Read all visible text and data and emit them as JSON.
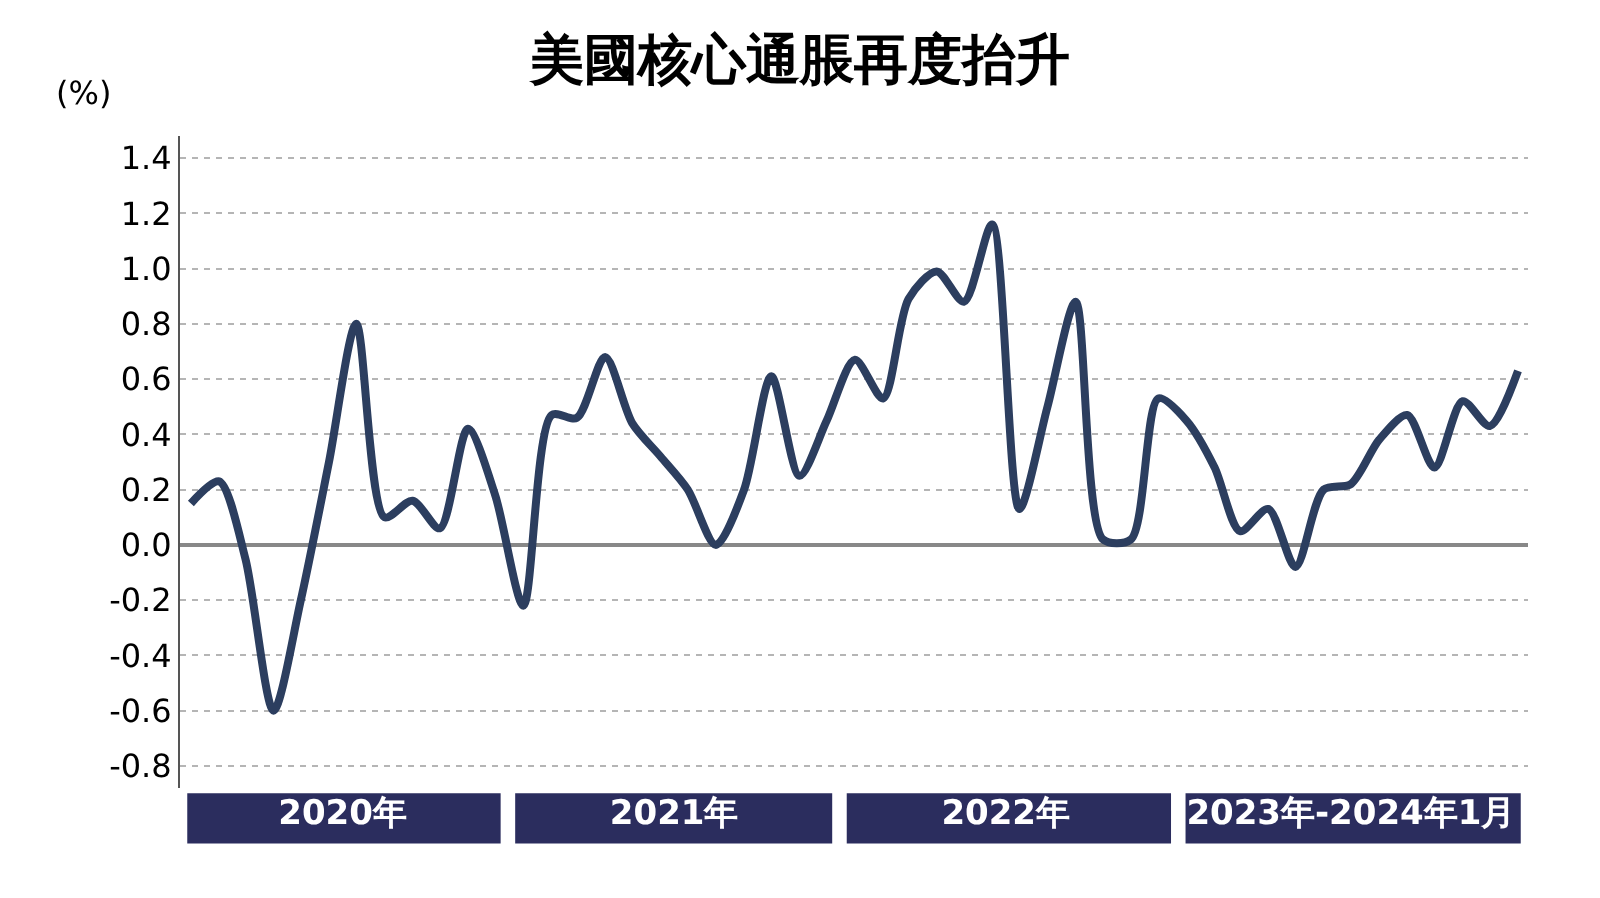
{
  "chart_data": {
    "type": "line",
    "title": "美國核心通脹再度抬升",
    "ylabel": "(%)",
    "x": [
      "2020-01",
      "2020-02",
      "2020-03",
      "2020-04",
      "2020-05",
      "2020-06",
      "2020-07",
      "2020-08",
      "2020-09",
      "2020-10",
      "2020-11",
      "2020-12",
      "2021-01",
      "2021-02",
      "2021-03",
      "2021-04",
      "2021-05",
      "2021-06",
      "2021-07",
      "2021-08",
      "2021-09",
      "2021-10",
      "2021-11",
      "2021-12",
      "2022-01",
      "2022-02",
      "2022-03",
      "2022-04",
      "2022-05",
      "2022-06",
      "2022-07",
      "2022-08",
      "2022-09",
      "2022-10",
      "2022-11",
      "2022-12",
      "2023-01",
      "2023-02",
      "2023-03",
      "2023-04",
      "2023-05",
      "2023-06",
      "2023-07",
      "2023-08",
      "2023-09",
      "2023-10",
      "2023-11",
      "2023-12",
      "2024-01"
    ],
    "series": [
      {
        "color": "#2c3e5f",
        "values": [
          0.15,
          0.23,
          -0.05,
          -0.6,
          -0.2,
          0.3,
          0.8,
          0.1,
          0.16,
          0.06,
          0.42,
          0.18,
          -0.22,
          0.47,
          0.46,
          0.68,
          0.44,
          0.32,
          0.2,
          0.0,
          0.2,
          0.61,
          0.25,
          0.45,
          0.67,
          0.53,
          0.89,
          0.99,
          0.88,
          1.16,
          0.13,
          0.5,
          0.88,
          0.02,
          0.02,
          0.53,
          0.45,
          0.28,
          0.05,
          0.13,
          -0.08,
          0.2,
          0.22,
          0.38,
          0.47,
          0.28,
          0.52,
          0.43,
          0.63
        ]
      }
    ],
    "xlim": [
      "2019-12-20",
      "2024-01-12"
    ],
    "xticks": [
      {
        "value": "2020-06-16",
        "label": "2020年"
      },
      {
        "value": "2021-06-16",
        "label": "2021年"
      },
      {
        "value": "2022-06-16",
        "label": "2022年"
      },
      {
        "value": "2023-07-01",
        "label": "2023年-2024年1月"
      }
    ],
    "ylim": [
      -0.88,
      1.48
    ],
    "yticks": [
      -0.8,
      -0.6,
      -0.4,
      -0.2,
      {
        "value": 0,
        "label": "0.0"
      },
      0.2,
      0.4,
      0.6,
      0.8,
      {
        "value": 1,
        "label": "1.0"
      },
      1.2,
      1.4
    ],
    "grid": "y",
    "marker": "none",
    "line_style": "solid"
  }
}
